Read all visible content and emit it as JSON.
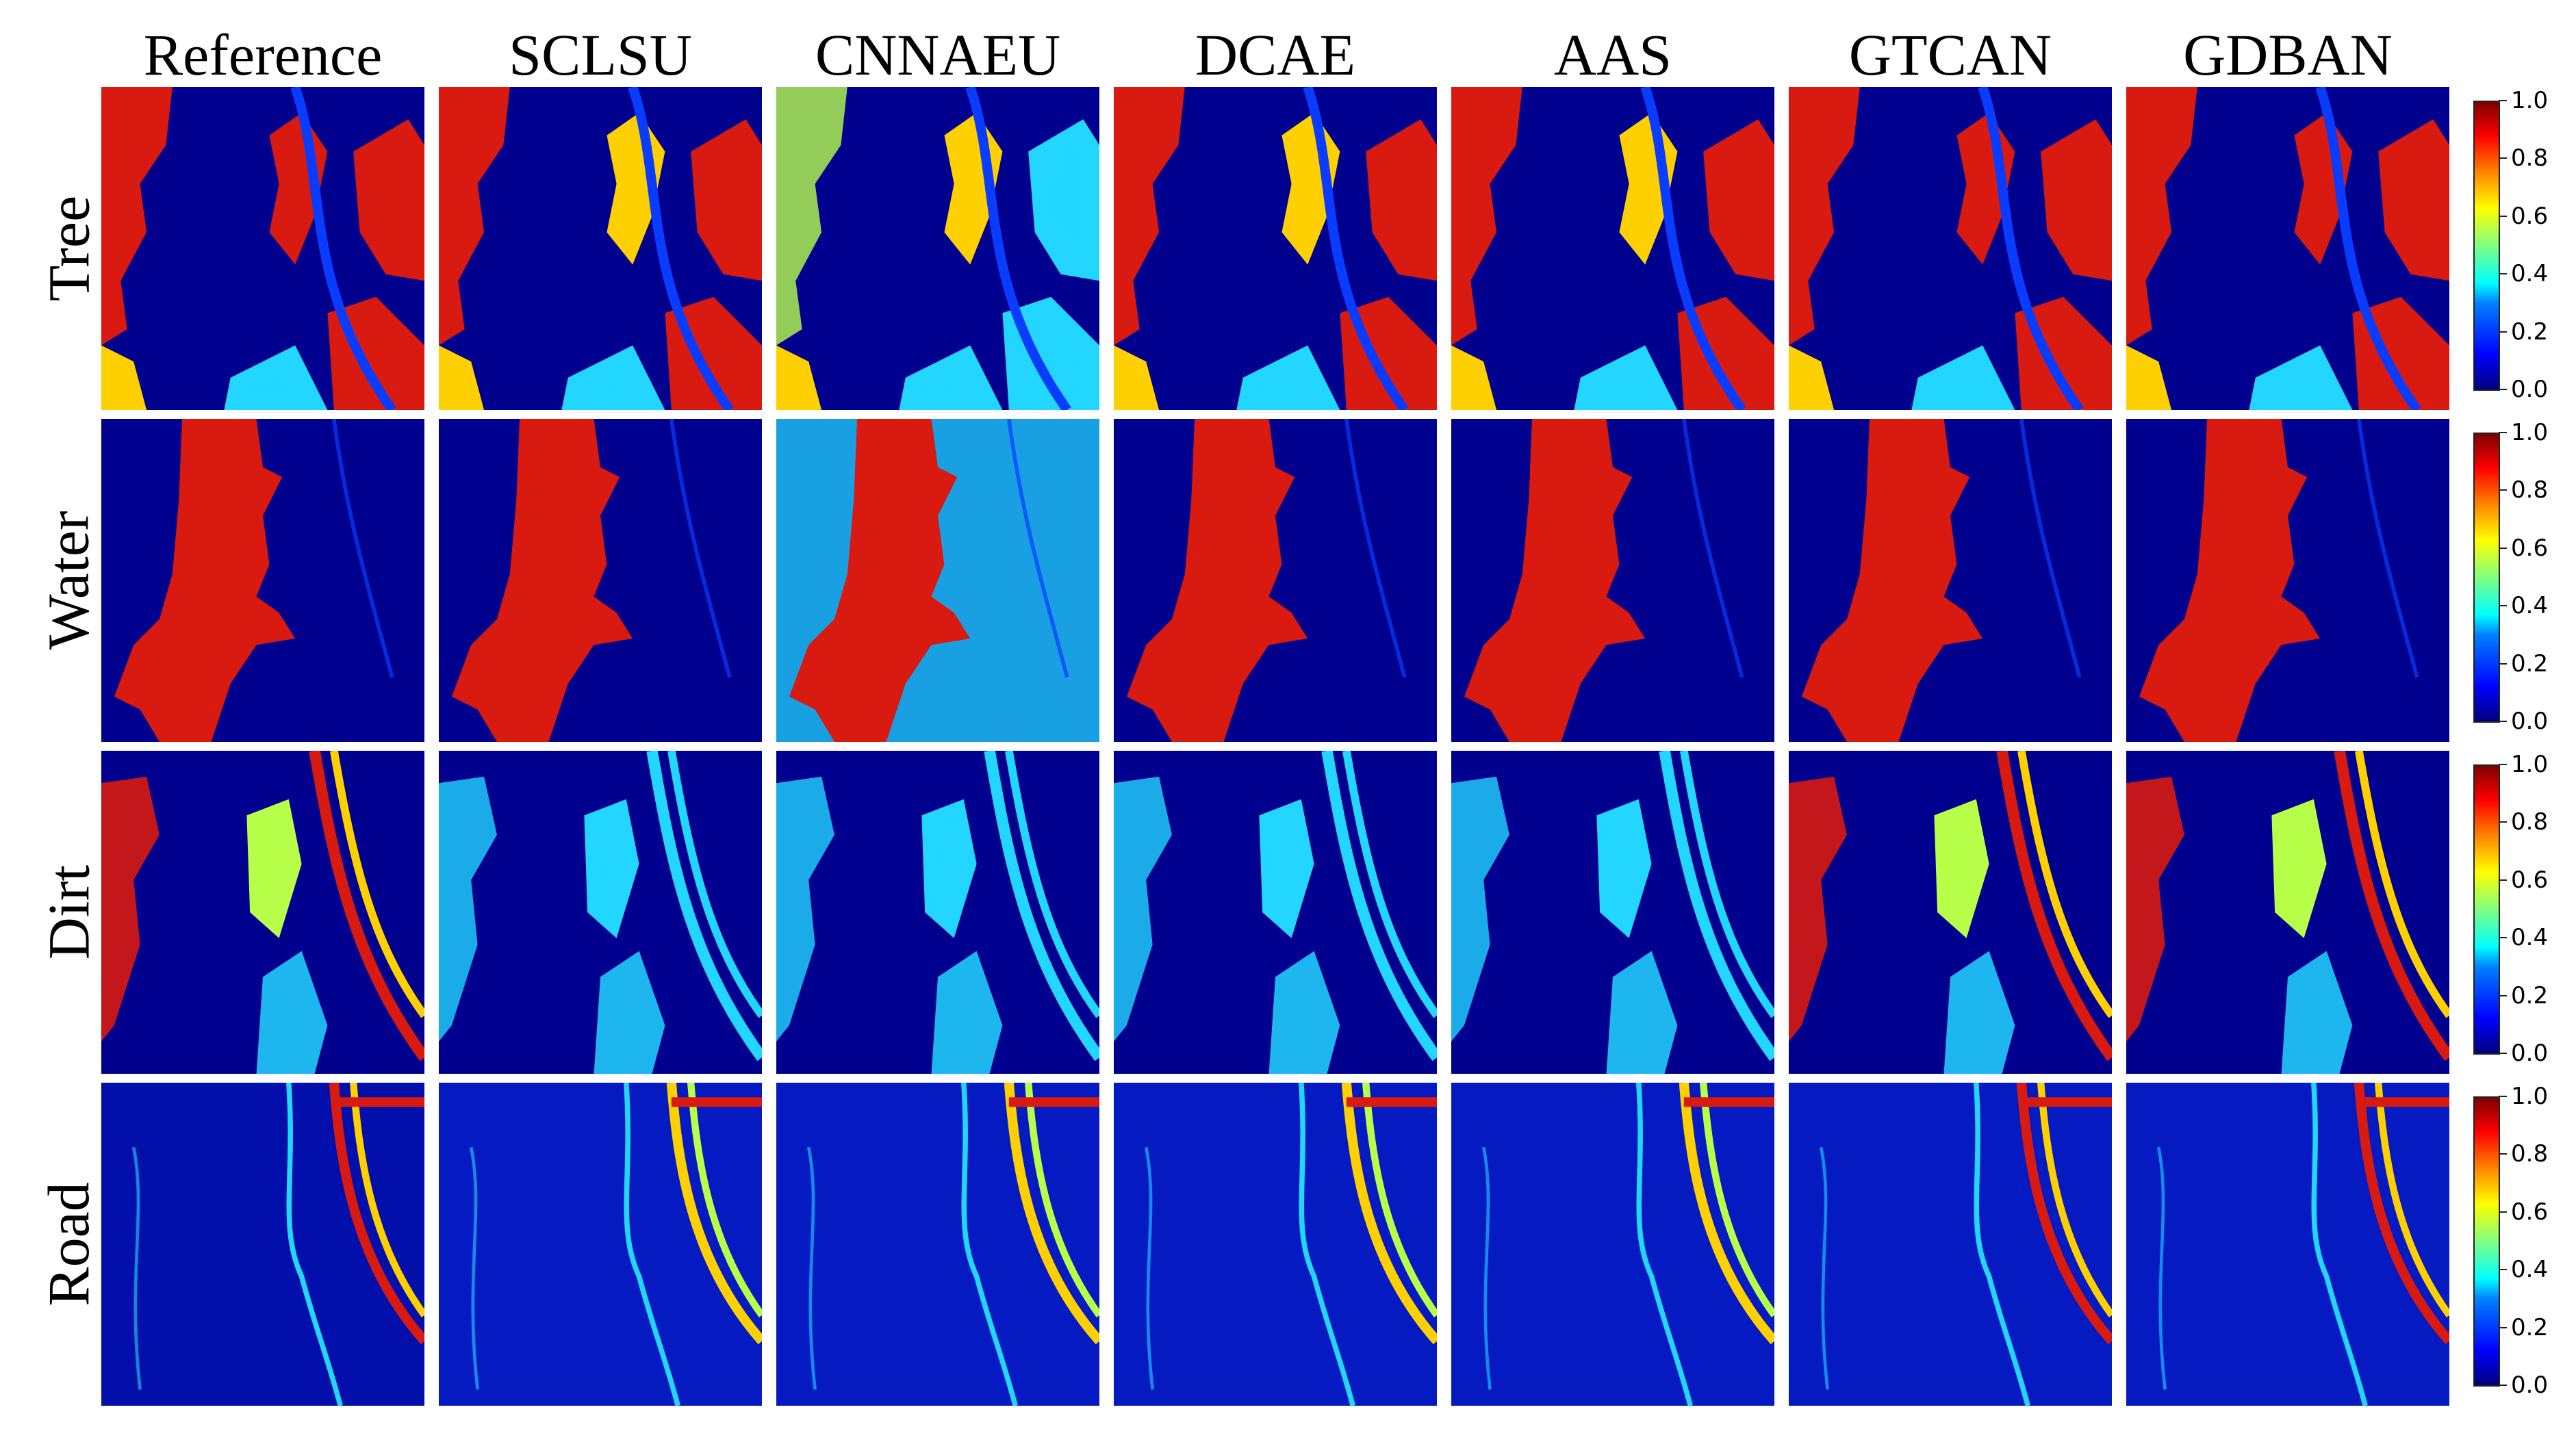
{
  "columns": [
    "Reference",
    "SCLSU",
    "CNNAEU",
    "DCAE",
    "AAS",
    "GTCAN",
    "GDBAN"
  ],
  "rows": [
    "Tree",
    "Water",
    "Dirt",
    "Road"
  ],
  "colorbar": {
    "ticks": [
      "0.0",
      "0.2",
      "0.4",
      "0.6",
      "0.8",
      "1.0"
    ],
    "colormap": "jet",
    "range": [
      0.0,
      1.0
    ]
  },
  "palette": {
    "bg": "#00008f",
    "low": "#0a3cff",
    "mid": "#22d6ff",
    "midhigh": "#b8ff4a",
    "high": "#ffd000",
    "top": "#d81a10"
  }
}
